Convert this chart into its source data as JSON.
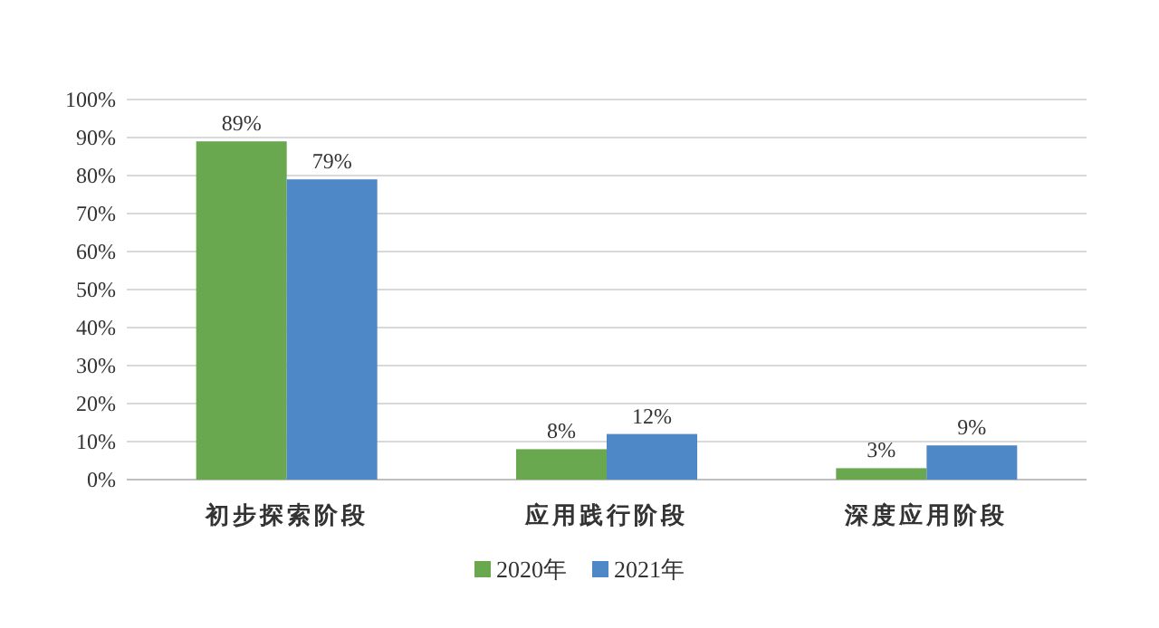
{
  "chart_data": {
    "type": "bar",
    "categories": [
      "初步探索阶段",
      "应用践行阶段",
      "深度应用阶段"
    ],
    "series": [
      {
        "name": "2020年",
        "color": "#6aa84f",
        "values": [
          89,
          8,
          3
        ],
        "value_labels": [
          "89%",
          "8%",
          "3%"
        ]
      },
      {
        "name": "2021年",
        "color": "#4f88c6",
        "values": [
          79,
          12,
          9
        ],
        "value_labels": [
          "79%",
          "12%",
          "9%"
        ]
      }
    ],
    "ylim": [
      0,
      100
    ],
    "yticks": [
      {
        "value": 0,
        "label": "0%"
      },
      {
        "value": 10,
        "label": "10%"
      },
      {
        "value": 20,
        "label": "20%"
      },
      {
        "value": 30,
        "label": "30%"
      },
      {
        "value": 40,
        "label": "40%"
      },
      {
        "value": 50,
        "label": "50%"
      },
      {
        "value": 60,
        "label": "60%"
      },
      {
        "value": 70,
        "label": "70%"
      },
      {
        "value": 80,
        "label": "80%"
      },
      {
        "value": 90,
        "label": "90%"
      },
      {
        "value": 100,
        "label": "100%"
      }
    ],
    "grid": "y",
    "legend": "bottom"
  }
}
